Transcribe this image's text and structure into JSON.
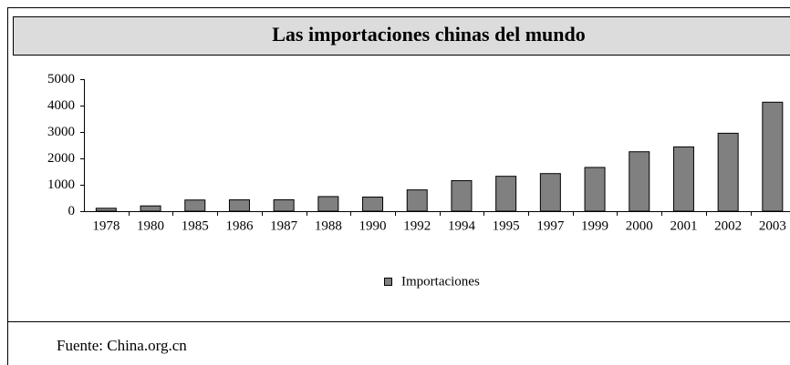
{
  "chart_data": {
    "type": "bar",
    "title": "Las importaciones chinas del mundo",
    "categories": [
      "1978",
      "1980",
      "1985",
      "1986",
      "1987",
      "1988",
      "1990",
      "1992",
      "1994",
      "1995",
      "1997",
      "1999",
      "2000",
      "2001",
      "2002",
      "2003"
    ],
    "series": [
      {
        "name": "Importaciones",
        "color": "#808080",
        "values": [
          110,
          200,
          423,
          429,
          432,
          553,
          534,
          806,
          1156,
          1321,
          1424,
          1657,
          2251,
          2436,
          2952,
          4128
        ]
      }
    ],
    "ylim": [
      0,
      5000
    ],
    "yticks": [
      0,
      1000,
      2000,
      3000,
      4000,
      5000
    ],
    "legend": "bottom",
    "source": "Fuente: China.org.cn"
  }
}
